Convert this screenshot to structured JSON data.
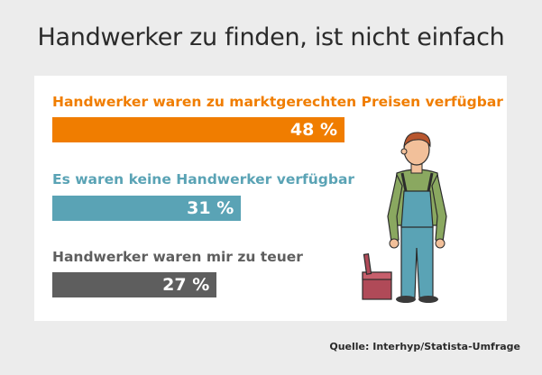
{
  "title": "Handwerker zu finden, ist nicht einfach",
  "source": "Quelle: Interhyp/Statista-Umfrage",
  "chart_data": {
    "type": "bar",
    "orientation": "horizontal",
    "title": "Handwerker zu finden, ist nicht einfach",
    "categories": [
      "Handwerker waren zu marktgerechten Preisen verfügbar",
      "Es waren keine Handwerker verfügbar",
      "Handwerker waren mir zu teuer"
    ],
    "values": [
      48,
      31,
      27
    ],
    "value_labels": [
      "48 %",
      "31 %",
      "27 %"
    ],
    "colors": [
      "#f07d00",
      "#5aa3b5",
      "#5e5e5e"
    ],
    "unit": "%",
    "xlim": [
      0,
      100
    ]
  }
}
